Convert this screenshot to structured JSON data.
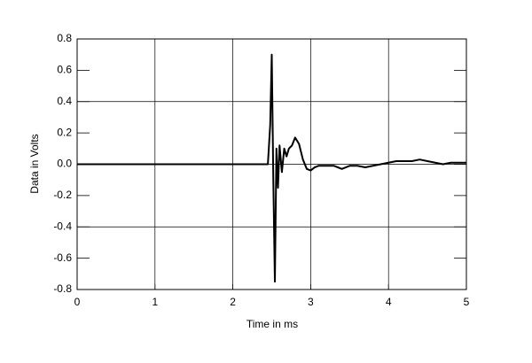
{
  "chart_data": {
    "type": "line",
    "x_label": "Time in ms",
    "y_label": "Data in Volts",
    "x": [
      0,
      2.45,
      2.48,
      2.5,
      2.52,
      2.54,
      2.56,
      2.58,
      2.6,
      2.63,
      2.66,
      2.69,
      2.72,
      2.76,
      2.8,
      2.85,
      2.9,
      2.95,
      3.0,
      3.05,
      3.1,
      3.2,
      3.3,
      3.4,
      3.5,
      3.6,
      3.7,
      3.8,
      3.9,
      4.0,
      4.1,
      4.2,
      4.3,
      4.4,
      4.5,
      4.6,
      4.7,
      4.8,
      4.9,
      5.0
    ],
    "series": [
      {
        "color": "#000000",
        "values": [
          0,
          0,
          0.25,
          0.7,
          -0.1,
          -0.75,
          0.1,
          -0.15,
          0.12,
          -0.05,
          0.1,
          0.05,
          0.1,
          0.12,
          0.17,
          0.13,
          0.03,
          -0.03,
          -0.04,
          -0.02,
          -0.01,
          -0.01,
          -0.01,
          -0.03,
          -0.01,
          -0.01,
          -0.02,
          -0.01,
          0.0,
          0.01,
          0.02,
          0.02,
          0.02,
          0.03,
          0.02,
          0.01,
          0.0,
          0.01,
          0.01,
          0.01
        ]
      }
    ],
    "xlim": [
      0,
      5
    ],
    "ylim": [
      -0.8,
      0.8
    ],
    "xticks": [
      0,
      1,
      2,
      3,
      4,
      5
    ],
    "yticks": [
      -0.8,
      -0.6,
      -0.4,
      -0.2,
      {
        "value": 0,
        "label": "0.0"
      },
      0.2,
      0.4,
      0.6,
      0.8
    ],
    "xgrid": [
      1,
      2,
      3,
      4
    ],
    "ygrid": [
      -0.4,
      0,
      0.4
    ]
  }
}
